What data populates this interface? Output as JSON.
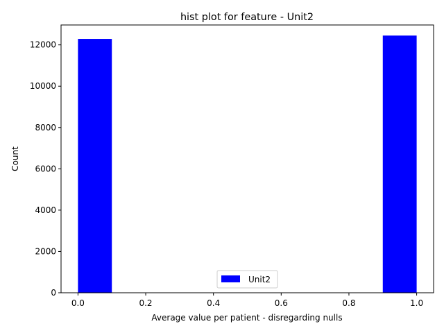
{
  "chart_data": {
    "type": "bar",
    "title": "hist plot for feature -  Unit2",
    "xlabel": "Average value per patient - disregarding nulls",
    "ylabel": "Count",
    "xlim": [
      -0.05,
      1.05
    ],
    "ylim": [
      0,
      12963
    ],
    "xticks": [
      0.0,
      0.2,
      0.4,
      0.6,
      0.8,
      1.0
    ],
    "xtick_labels": [
      "0.0",
      "0.2",
      "0.4",
      "0.6",
      "0.8",
      "1.0"
    ],
    "yticks": [
      0,
      2000,
      4000,
      6000,
      8000,
      10000,
      12000
    ],
    "ytick_labels": [
      "0",
      "2000",
      "4000",
      "6000",
      "8000",
      "10000",
      "12000"
    ],
    "bins": [
      {
        "x0": 0.0,
        "x1": 0.1,
        "count": 12290
      },
      {
        "x0": 0.1,
        "x1": 0.2,
        "count": 0
      },
      {
        "x0": 0.2,
        "x1": 0.3,
        "count": 0
      },
      {
        "x0": 0.3,
        "x1": 0.4,
        "count": 0
      },
      {
        "x0": 0.4,
        "x1": 0.5,
        "count": 0
      },
      {
        "x0": 0.5,
        "x1": 0.6,
        "count": 0
      },
      {
        "x0": 0.6,
        "x1": 0.7,
        "count": 0
      },
      {
        "x0": 0.7,
        "x1": 0.8,
        "count": 0
      },
      {
        "x0": 0.8,
        "x1": 0.9,
        "count": 0
      },
      {
        "x0": 0.9,
        "x1": 1.0,
        "count": 12450
      }
    ],
    "series": [
      {
        "name": "Unit2",
        "color": "#0000ff"
      }
    ],
    "legend": {
      "position": "bottom-center",
      "label": "Unit2"
    },
    "grid": false
  }
}
